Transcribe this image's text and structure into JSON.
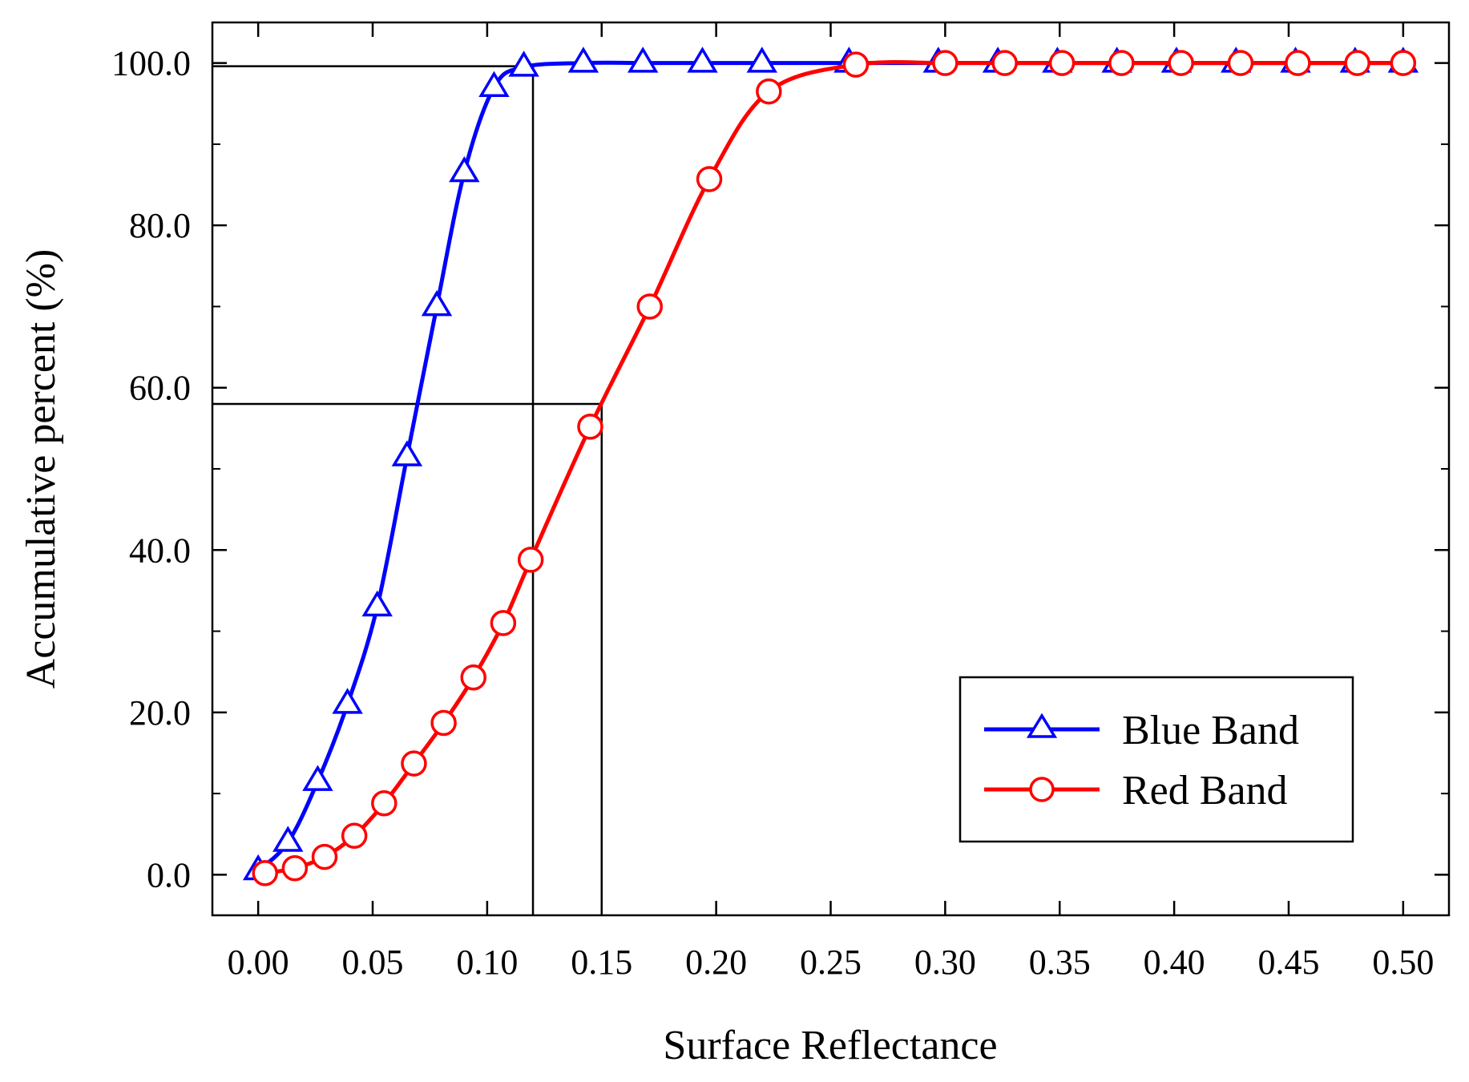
{
  "chart_data": {
    "type": "line",
    "title": "",
    "xlabel": "Surface Reflectance",
    "ylabel": "Accumulative percent (%)",
    "xlim": [
      -0.02,
      0.52
    ],
    "ylim": [
      -5,
      105
    ],
    "xticks": [
      0.0,
      0.05,
      0.1,
      0.15,
      0.2,
      0.25,
      0.3,
      0.35,
      0.4,
      0.45,
      0.5
    ],
    "xtick_labels": [
      "0.00",
      "0.05",
      "0.10",
      "0.15",
      "0.20",
      "0.25",
      "0.30",
      "0.35",
      "0.40",
      "0.45",
      "0.50"
    ],
    "yticks": [
      0,
      20,
      40,
      60,
      80,
      100
    ],
    "ytick_labels": [
      "0.0",
      "20.0",
      "40.0",
      "60.0",
      "80.0",
      "100.0"
    ],
    "yminor": [
      10,
      30,
      50,
      70,
      90
    ],
    "grid": false,
    "legend_position": "bottom-right",
    "series": [
      {
        "name": "Blue Band",
        "color": "#0000ff",
        "marker": "triangle",
        "points": [
          [
            0.0,
            0.5
          ],
          [
            0.013,
            4.0
          ],
          [
            0.026,
            11.5
          ],
          [
            0.039,
            21.0
          ],
          [
            0.052,
            33.0
          ],
          [
            0.065,
            51.5
          ],
          [
            0.078,
            70.0
          ],
          [
            0.09,
            86.5
          ],
          [
            0.103,
            97.0
          ],
          [
            0.116,
            99.5
          ],
          [
            0.142,
            100.0
          ],
          [
            0.168,
            100.0
          ],
          [
            0.194,
            100.0
          ],
          [
            0.22,
            100.0
          ],
          [
            0.258,
            100.0
          ],
          [
            0.297,
            100.0
          ],
          [
            0.323,
            100.0
          ],
          [
            0.349,
            100.0
          ],
          [
            0.375,
            100.0
          ],
          [
            0.401,
            100.0
          ],
          [
            0.427,
            100.0
          ],
          [
            0.453,
            100.0
          ],
          [
            0.479,
            100.0
          ],
          [
            0.5,
            100.0
          ]
        ]
      },
      {
        "name": "Red Band",
        "color": "#ff0000",
        "marker": "circle",
        "points": [
          [
            0.003,
            0.2
          ],
          [
            0.016,
            0.8
          ],
          [
            0.029,
            2.2
          ],
          [
            0.042,
            4.8
          ],
          [
            0.055,
            8.8
          ],
          [
            0.068,
            13.7
          ],
          [
            0.081,
            18.7
          ],
          [
            0.094,
            24.3
          ],
          [
            0.107,
            31.0
          ],
          [
            0.119,
            38.8
          ],
          [
            0.145,
            55.2
          ],
          [
            0.171,
            70.0
          ],
          [
            0.197,
            85.7
          ],
          [
            0.223,
            96.5
          ],
          [
            0.261,
            99.8
          ],
          [
            0.3,
            100.0
          ],
          [
            0.326,
            100.0
          ],
          [
            0.351,
            100.0
          ],
          [
            0.377,
            100.0
          ],
          [
            0.403,
            100.0
          ],
          [
            0.429,
            100.0
          ],
          [
            0.454,
            100.0
          ],
          [
            0.48,
            100.0
          ],
          [
            0.5,
            100.0
          ]
        ]
      }
    ],
    "reference_lines": [
      {
        "name": "blue-band-99-percent",
        "x": 0.12,
        "y": 99.6
      },
      {
        "name": "red-band-58-percent",
        "x": 0.15,
        "y": 58.0
      }
    ]
  }
}
